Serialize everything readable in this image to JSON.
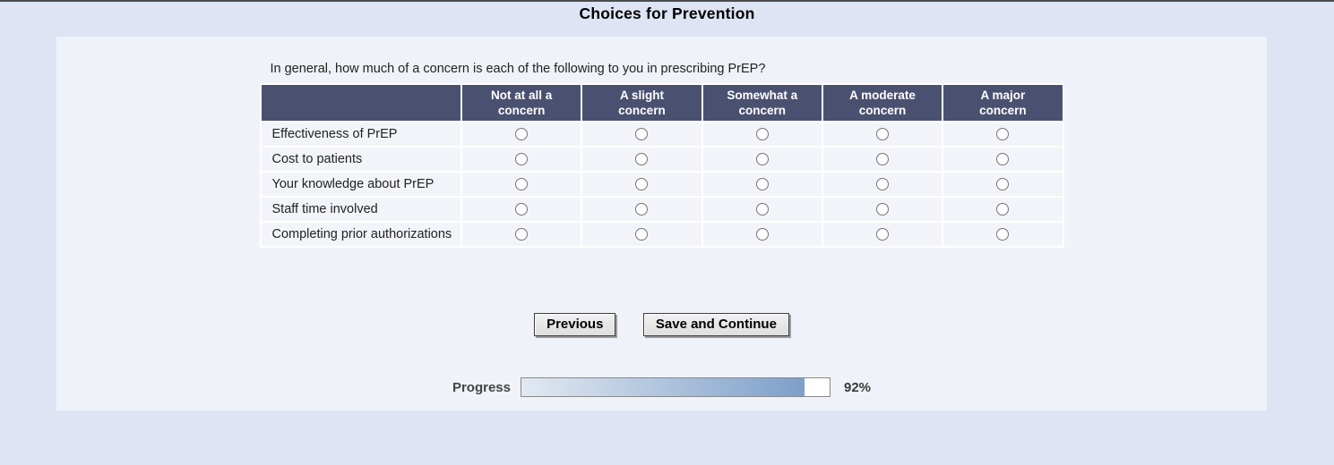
{
  "page": {
    "title": "Choices for Prevention"
  },
  "survey": {
    "question": "In general, how much of a concern is each of the following to you in prescribing PrEP?",
    "table": {
      "columns": [
        "Not at all a concern",
        "A slight concern",
        "Somewhat a concern",
        "A moderate concern",
        "A major concern"
      ],
      "rows": [
        "Effectiveness of PrEP",
        "Cost to patients",
        "Your knowledge about PrEP",
        "Staff time involved",
        "Completing prior authorizations"
      ],
      "selected": null
    },
    "buttons": {
      "previous": "Previous",
      "save": "Save and Continue"
    },
    "progress": {
      "label": "Progress",
      "percent": 92,
      "percent_text": "92%"
    }
  },
  "colors": {
    "header_bg": "#4a5170",
    "page_bg": "#dee4f3",
    "panel_bg": "#eff2f8",
    "row_bg": "#f2f4f9",
    "progress_fill_start": "#e2e9f2",
    "progress_fill_end": "#7d9fc9"
  }
}
